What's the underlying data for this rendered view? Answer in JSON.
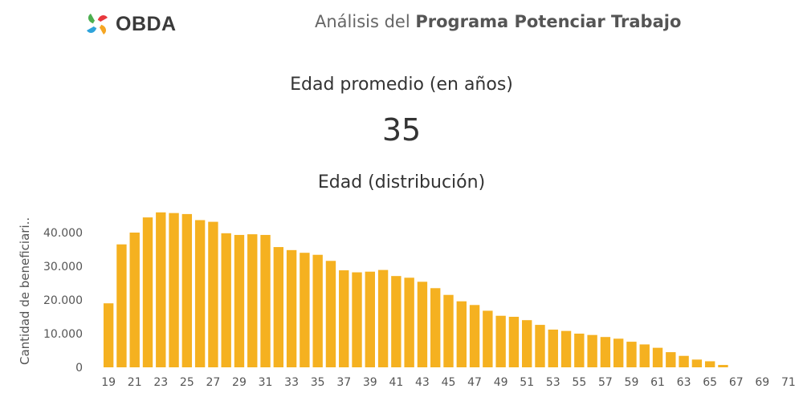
{
  "header": {
    "logo_text": "OBDA",
    "title_prefix": "Análisis del ",
    "title_bold": "Programa Potenciar Trabajo"
  },
  "kpi": {
    "label": "Edad promedio (en años)",
    "value": "35"
  },
  "colors": {
    "bar": "#F5B120",
    "axis_text": "#555555",
    "logo_petals": [
      "#E8383D",
      "#F5A623",
      "#2EA3DB",
      "#4CAF50"
    ]
  },
  "chart_data": {
    "type": "bar",
    "title": "Edad (distribución)",
    "xlabel": "",
    "ylabel": "Cantidad de beneficiari..",
    "ylim": [
      0,
      50000
    ],
    "yticks": [
      0,
      10000,
      20000,
      30000,
      40000
    ],
    "ytick_labels": [
      "0",
      "10.000",
      "20.000",
      "30.000",
      "40.000"
    ],
    "categories": [
      19,
      20,
      21,
      22,
      23,
      24,
      25,
      26,
      27,
      28,
      29,
      30,
      31,
      32,
      33,
      34,
      35,
      36,
      37,
      38,
      39,
      40,
      41,
      42,
      43,
      44,
      45,
      46,
      47,
      48,
      49,
      50,
      51,
      52,
      53,
      54,
      55,
      56,
      57,
      58,
      59,
      60,
      61,
      62,
      63,
      64,
      65,
      66,
      67,
      68,
      69,
      70,
      71
    ],
    "xtick_labels": [
      "19",
      "21",
      "23",
      "25",
      "27",
      "29",
      "31",
      "33",
      "35",
      "37",
      "39",
      "41",
      "43",
      "45",
      "47",
      "49",
      "51",
      "53",
      "55",
      "57",
      "59",
      "61",
      "63",
      "65",
      "67",
      "69",
      "71"
    ],
    "values": [
      19000,
      36500,
      40000,
      44500,
      46000,
      45800,
      45500,
      43700,
      43200,
      39800,
      39300,
      39500,
      39300,
      35700,
      34800,
      34000,
      33400,
      31600,
      28800,
      28200,
      28400,
      28900,
      27100,
      26600,
      25400,
      23500,
      21500,
      19600,
      18500,
      16800,
      15300,
      15000,
      14000,
      12600,
      11200,
      10800,
      10000,
      9600,
      9000,
      8500,
      7600,
      6800,
      5800,
      4500,
      3400,
      2300,
      1800,
      700,
      0,
      0,
      0,
      0,
      0
    ],
    "grid": false,
    "legend": "none"
  }
}
